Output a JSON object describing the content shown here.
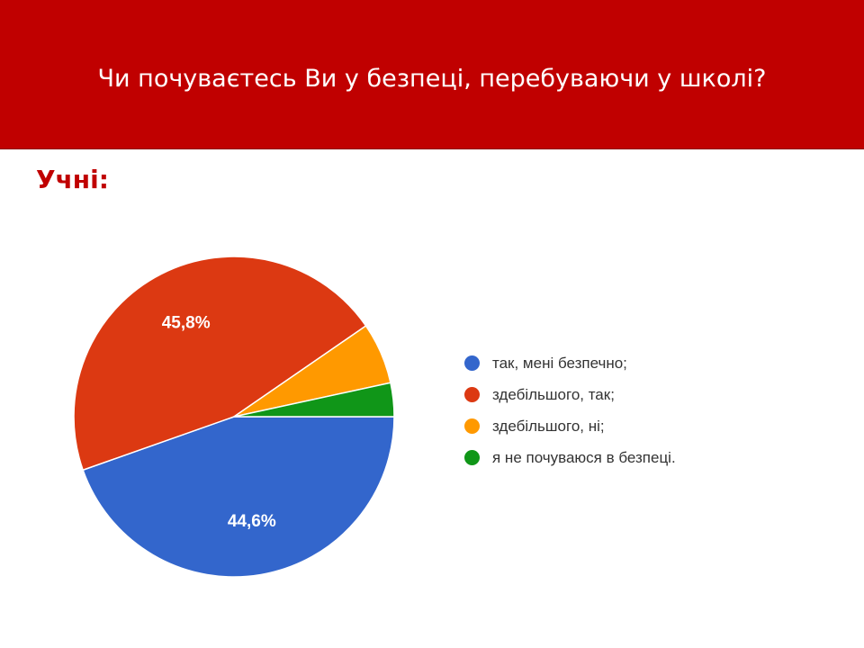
{
  "slide": {
    "title": "Чи почуваєтесь Ви у безпеці, перебуваючи у школі?",
    "subtitle": "Учні:"
  },
  "colors": {
    "title_bar": "#c00000",
    "subtitle": "#c00000"
  },
  "chart_data": {
    "type": "pie",
    "categories": [
      "так, мені безпечно;",
      "здебільшого, так;",
      "здебільшого, ні;",
      "я не почуваюся в безпеці."
    ],
    "values": [
      44.6,
      45.8,
      6.2,
      3.4
    ],
    "data_labels": [
      "44,6%",
      "45,8%",
      "",
      ""
    ],
    "colors": [
      "#3366cc",
      "#dc3912",
      "#ff9900",
      "#109618"
    ],
    "legend_position": "right"
  }
}
